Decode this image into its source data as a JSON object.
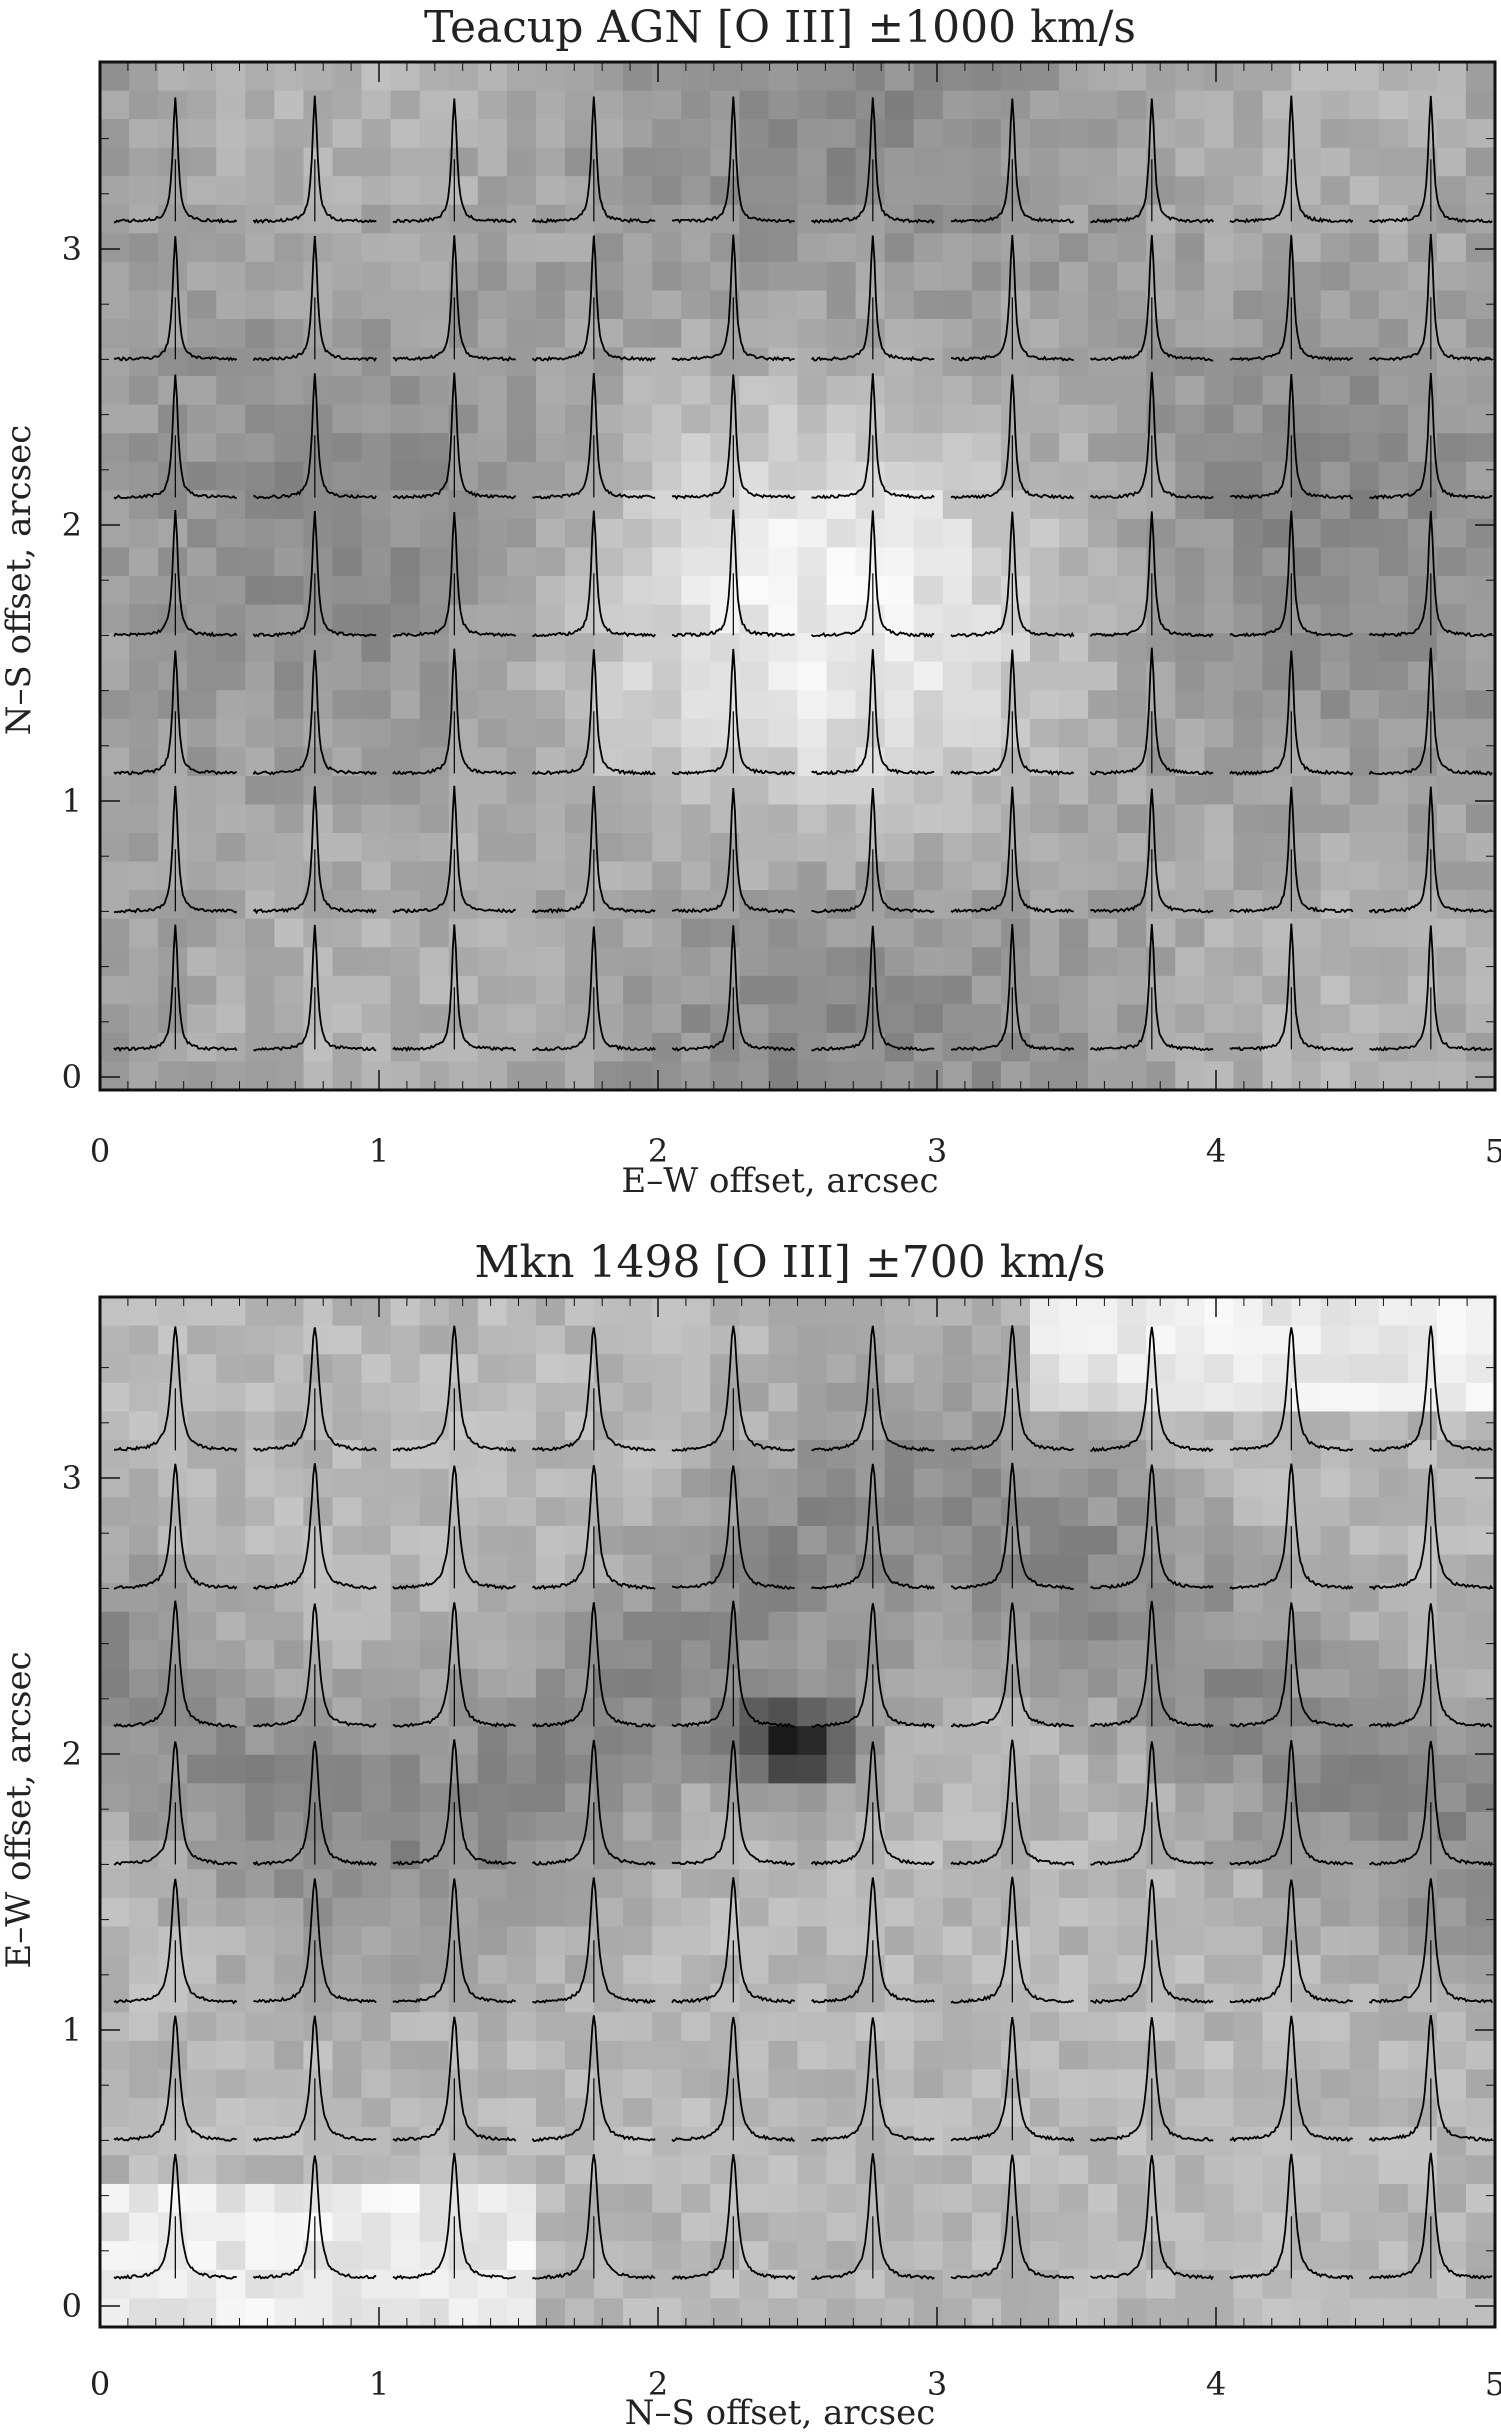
{
  "chart_data": [
    {
      "type": "heatmap",
      "title": "Teacup AGN [O III] ±1000 km/s",
      "xlabel": "E–W offset, arcsec",
      "ylabel": "N–S offset, arcsec",
      "xlim": [
        0,
        5
      ],
      "ylim": [
        -0.05,
        3.68
      ],
      "xticks": [
        "0",
        "1",
        "2",
        "3",
        "4",
        "5"
      ],
      "yticks": [
        "0",
        "1",
        "2",
        "3"
      ],
      "colormap": "grayscale",
      "spectra_grid": {
        "columns": 10,
        "rows": 7,
        "line_color": "#000000"
      }
    },
    {
      "type": "heatmap",
      "title": "Mkn 1498 [O III] ±700 km/s",
      "xlabel": "N–S offset, arcsec",
      "ylabel": "E–W offset, arcsec",
      "xlim": [
        0,
        5
      ],
      "ylim": [
        -0.05,
        3.65
      ],
      "xticks": [
        "0",
        "1",
        "2",
        "3",
        "4",
        "5"
      ],
      "yticks": [
        "0",
        "1",
        "2",
        "3"
      ],
      "colormap": "grayscale",
      "spectra_grid": {
        "columns": 10,
        "rows": 7,
        "line_color": "#000000"
      }
    }
  ]
}
